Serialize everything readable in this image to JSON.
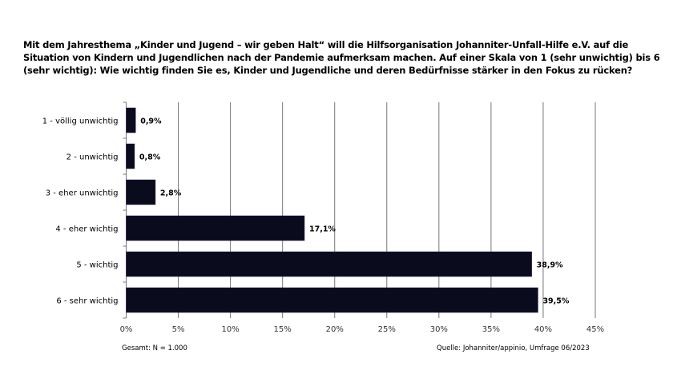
{
  "chart_data": {
    "type": "bar",
    "orientation": "horizontal",
    "title": "Mit dem Jahresthema „Kinder und Jugend – wir geben Halt“ will die Hilfsorganisation Johanniter-Unfall-Hilfe e.V. auf die Situation von Kindern und Jugendlichen nach der Pandemie aufmerksam machen. Auf einer Skala von 1 (sehr unwichtig) bis 6 (sehr wichtig): Wie wichtig finden Sie es, Kinder und Jugendliche und deren Bedürfnisse stärker in den Fokus zu rücken?",
    "categories": [
      "1 - völlig unwichtig",
      "2 - unwichtig",
      "3 - eher unwichtig",
      "4 - eher wichtig",
      "5 - wichtig",
      "6 - sehr wichtig"
    ],
    "values": [
      0.9,
      0.8,
      2.8,
      17.1,
      38.9,
      39.5
    ],
    "value_labels": [
      "0,9%",
      "0,8%",
      "2,8%",
      "17,1%",
      "38,9%",
      "39,5%"
    ],
    "xlim": [
      0,
      45
    ],
    "xticks": [
      "0%",
      "5%",
      "10%",
      "15%",
      "20%",
      "25%",
      "30%",
      "35%",
      "40%",
      "45%"
    ],
    "grid": true,
    "bar_color": "#0b0b1e",
    "note": "Gesamt: N = 1.000",
    "source": "Quelle: Johanniter/appinio,  Umfrage 06/2023"
  }
}
